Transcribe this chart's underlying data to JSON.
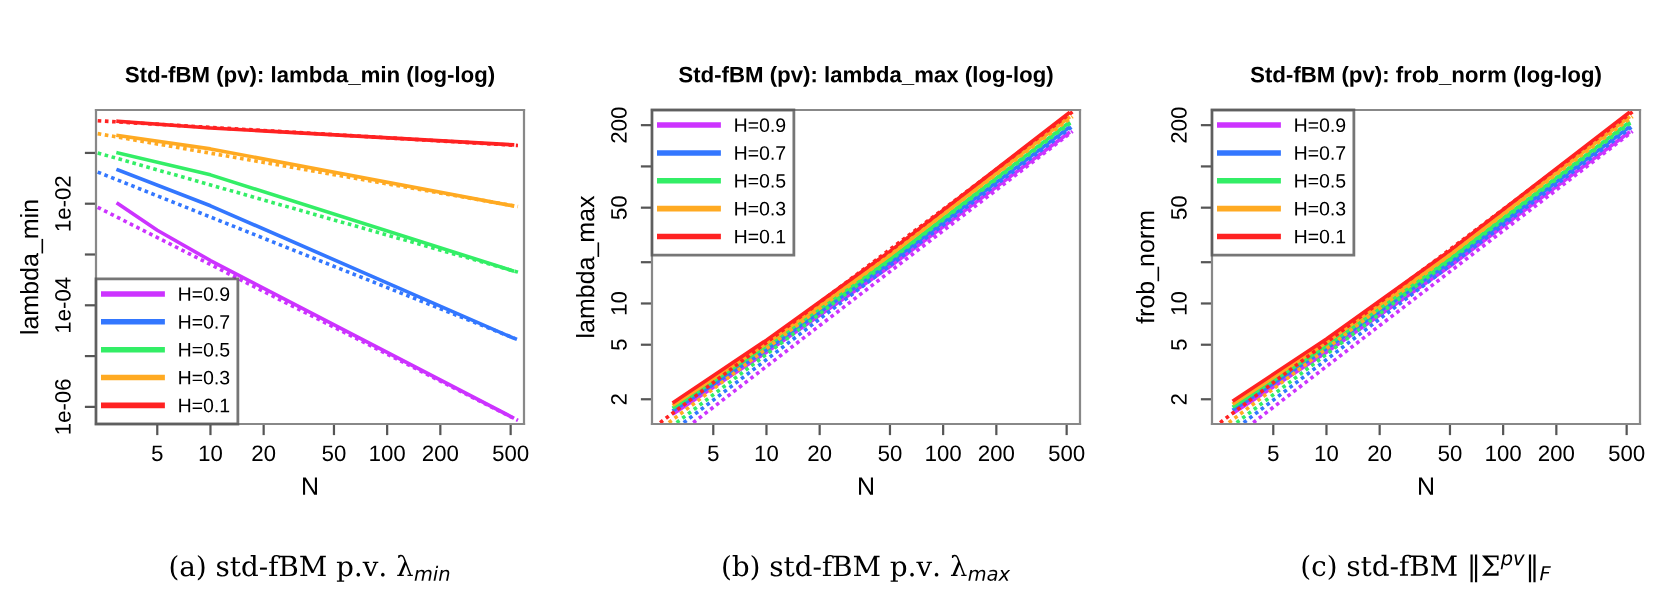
{
  "chart_data": [
    {
      "type": "line",
      "title": "Std-fBM (pv): lambda_min (log-log)",
      "xlabel": "N",
      "ylabel": "lambda_min",
      "log": "xy",
      "grid": false,
      "legend": "bottom left",
      "marker": "none",
      "xlim": [
        2.25,
        595
      ],
      "xticks": [
        5,
        10,
        20,
        50,
        100,
        200,
        500
      ],
      "ylim": [
        4.6e-07,
        0.7
      ],
      "yticks": [
        {
          "value": 0.1,
          "label": null
        },
        {
          "value": 0.01,
          "label": "1e-02"
        },
        {
          "value": 0.001,
          "label": null
        },
        {
          "value": 0.0001,
          "label": "1e-04"
        },
        {
          "value": 1e-05,
          "label": null
        },
        {
          "value": 1e-06,
          "label": "1e-06"
        }
      ],
      "annotations": [
        "(a) std-fBM p.v. λ$_{min}$"
      ],
      "series": [
        {
          "name": "H=0.9",
          "color": "#cc33ff",
          "x": [
            3,
            5,
            10,
            512
          ],
          "values": [
            0.01,
            0.003,
            0.00076,
            6.2e-07
          ]
        },
        {
          "name": "H=0.7",
          "color": "#3377ff",
          "x": [
            3,
            10,
            512
          ],
          "values": [
            0.046,
            0.0091,
            2.3e-05
          ]
        },
        {
          "name": "H=0.5",
          "color": "#33ee66",
          "x": [
            3,
            10,
            512
          ],
          "values": [
            0.1,
            0.037,
            0.00048
          ]
        },
        {
          "name": "H=0.3",
          "color": "#ffaa22",
          "x": [
            3,
            10,
            512
          ],
          "values": [
            0.22,
            0.12,
            0.0091
          ]
        },
        {
          "name": "H=0.1",
          "color": "#ff2222",
          "x": [
            3,
            10,
            512
          ],
          "values": [
            0.42,
            0.31,
            0.145
          ]
        },
        {
          "color": "#cc33ff",
          "line_style": "dotted",
          "x": [
            2.3,
            550
          ],
          "values": [
            0.0085,
            5.4e-07
          ]
        },
        {
          "color": "#3377ff",
          "line_style": "dotted",
          "x": [
            2.3,
            550
          ],
          "values": [
            0.042,
            2.1e-05
          ]
        },
        {
          "color": "#33ee66",
          "line_style": "dotted",
          "x": [
            2.3,
            550
          ],
          "values": [
            0.1,
            0.00045
          ]
        },
        {
          "color": "#ffaa22",
          "line_style": "dotted",
          "x": [
            2.3,
            550
          ],
          "values": [
            0.24,
            0.0088
          ]
        },
        {
          "color": "#ff2222",
          "line_style": "dotted",
          "x": [
            2.3,
            550
          ],
          "values": [
            0.43,
            0.14
          ]
        }
      ]
    },
    {
      "type": "line",
      "title": "Std-fBM (pv): lambda_max (log-log)",
      "xlabel": "N",
      "ylabel": "lambda_max",
      "log": "xy",
      "grid": false,
      "legend": "top left",
      "marker": "none",
      "xlim": [
        2.25,
        595
      ],
      "xticks": [
        5,
        10,
        20,
        50,
        100,
        200,
        500
      ],
      "ylim": [
        1.32,
        258
      ],
      "yticks": [
        2,
        5,
        10,
        {
          "value": 20,
          "label": null
        },
        50,
        {
          "value": 100,
          "label": null
        },
        200
      ],
      "annotations": [
        "(b) std-fBM p.v. λ$_{max}$"
      ],
      "series": [
        {
          "name": "H=0.9",
          "color": "#cc33ff",
          "x": [
            3,
            10,
            50,
            512
          ],
          "values": [
            1.58,
            4.4,
            18.6,
            175
          ]
        },
        {
          "name": "H=0.7",
          "color": "#3377ff",
          "x": [
            3,
            10,
            50,
            512
          ],
          "values": [
            1.67,
            4.6,
            19.9,
            191
          ]
        },
        {
          "name": "H=0.5",
          "color": "#33ee66",
          "x": [
            3,
            10,
            50,
            512
          ],
          "values": [
            1.75,
            4.9,
            21.1,
            207
          ]
        },
        {
          "name": "H=0.3",
          "color": "#ffaa22",
          "x": [
            3,
            10,
            50,
            512
          ],
          "values": [
            1.83,
            5.1,
            22.5,
            226
          ]
        },
        {
          "name": "H=0.1",
          "color": "#ff2222",
          "x": [
            3,
            10,
            50,
            512
          ],
          "values": [
            1.91,
            5.4,
            24,
            244
          ]
        },
        {
          "color": "#cc33ff",
          "line_style": "dotted",
          "x": [
            3.85,
            540
          ],
          "values": [
            1.35,
            180
          ]
        },
        {
          "color": "#3377ff",
          "line_style": "dotted",
          "x": [
            3.4,
            540
          ],
          "values": [
            1.35,
            196
          ]
        },
        {
          "color": "#33ee66",
          "line_style": "dotted",
          "x": [
            3.1,
            540
          ],
          "values": [
            1.35,
            213
          ]
        },
        {
          "color": "#ffaa22",
          "line_style": "dotted",
          "x": [
            2.8,
            540
          ],
          "values": [
            1.35,
            231
          ]
        },
        {
          "color": "#ff2222",
          "line_style": "dotted",
          "x": [
            2.5,
            540
          ],
          "values": [
            1.35,
            250
          ]
        }
      ]
    },
    {
      "type": "line",
      "title": "Std-fBM (pv): frob_norm (log-log)",
      "xlabel": "N",
      "ylabel": "frob_norm",
      "log": "xy",
      "grid": false,
      "legend": "top left",
      "marker": "none",
      "xlim": [
        2.25,
        595
      ],
      "xticks": [
        5,
        10,
        20,
        50,
        100,
        200,
        500
      ],
      "ylim": [
        1.32,
        258
      ],
      "yticks": [
        2,
        5,
        10,
        {
          "value": 20,
          "label": null
        },
        50,
        {
          "value": 100,
          "label": null
        },
        200
      ],
      "annotations": [
        "(c) std-fBM ‖Σ$^{pv}$‖$_{F}$"
      ],
      "series": [
        {
          "name": "H=0.9",
          "color": "#cc33ff",
          "x": [
            3,
            10,
            50,
            512
          ],
          "values": [
            1.6,
            4.4,
            18.7,
            176
          ]
        },
        {
          "name": "H=0.7",
          "color": "#3377ff",
          "x": [
            3,
            10,
            50,
            512
          ],
          "values": [
            1.69,
            4.7,
            20,
            192
          ]
        },
        {
          "name": "H=0.5",
          "color": "#33ee66",
          "x": [
            3,
            10,
            50,
            512
          ],
          "values": [
            1.78,
            4.9,
            21.3,
            208
          ]
        },
        {
          "name": "H=0.3",
          "color": "#ffaa22",
          "x": [
            3,
            10,
            50,
            512
          ],
          "values": [
            1.87,
            5.2,
            22.7,
            227
          ]
        },
        {
          "name": "H=0.1",
          "color": "#ff2222",
          "x": [
            3,
            10,
            50,
            512
          ],
          "values": [
            1.97,
            5.5,
            24.3,
            245
          ]
        },
        {
          "color": "#cc33ff",
          "line_style": "dotted",
          "x": [
            3.85,
            540
          ],
          "values": [
            1.35,
            180
          ]
        },
        {
          "color": "#3377ff",
          "line_style": "dotted",
          "x": [
            3.4,
            540
          ],
          "values": [
            1.35,
            196
          ]
        },
        {
          "color": "#33ee66",
          "line_style": "dotted",
          "x": [
            3.1,
            540
          ],
          "values": [
            1.35,
            213
          ]
        },
        {
          "color": "#ffaa22",
          "line_style": "dotted",
          "x": [
            2.8,
            540
          ],
          "values": [
            1.35,
            231
          ]
        },
        {
          "color": "#ff2222",
          "line_style": "dotted",
          "x": [
            2.5,
            540
          ],
          "values": [
            1.35,
            250
          ]
        }
      ]
    }
  ]
}
